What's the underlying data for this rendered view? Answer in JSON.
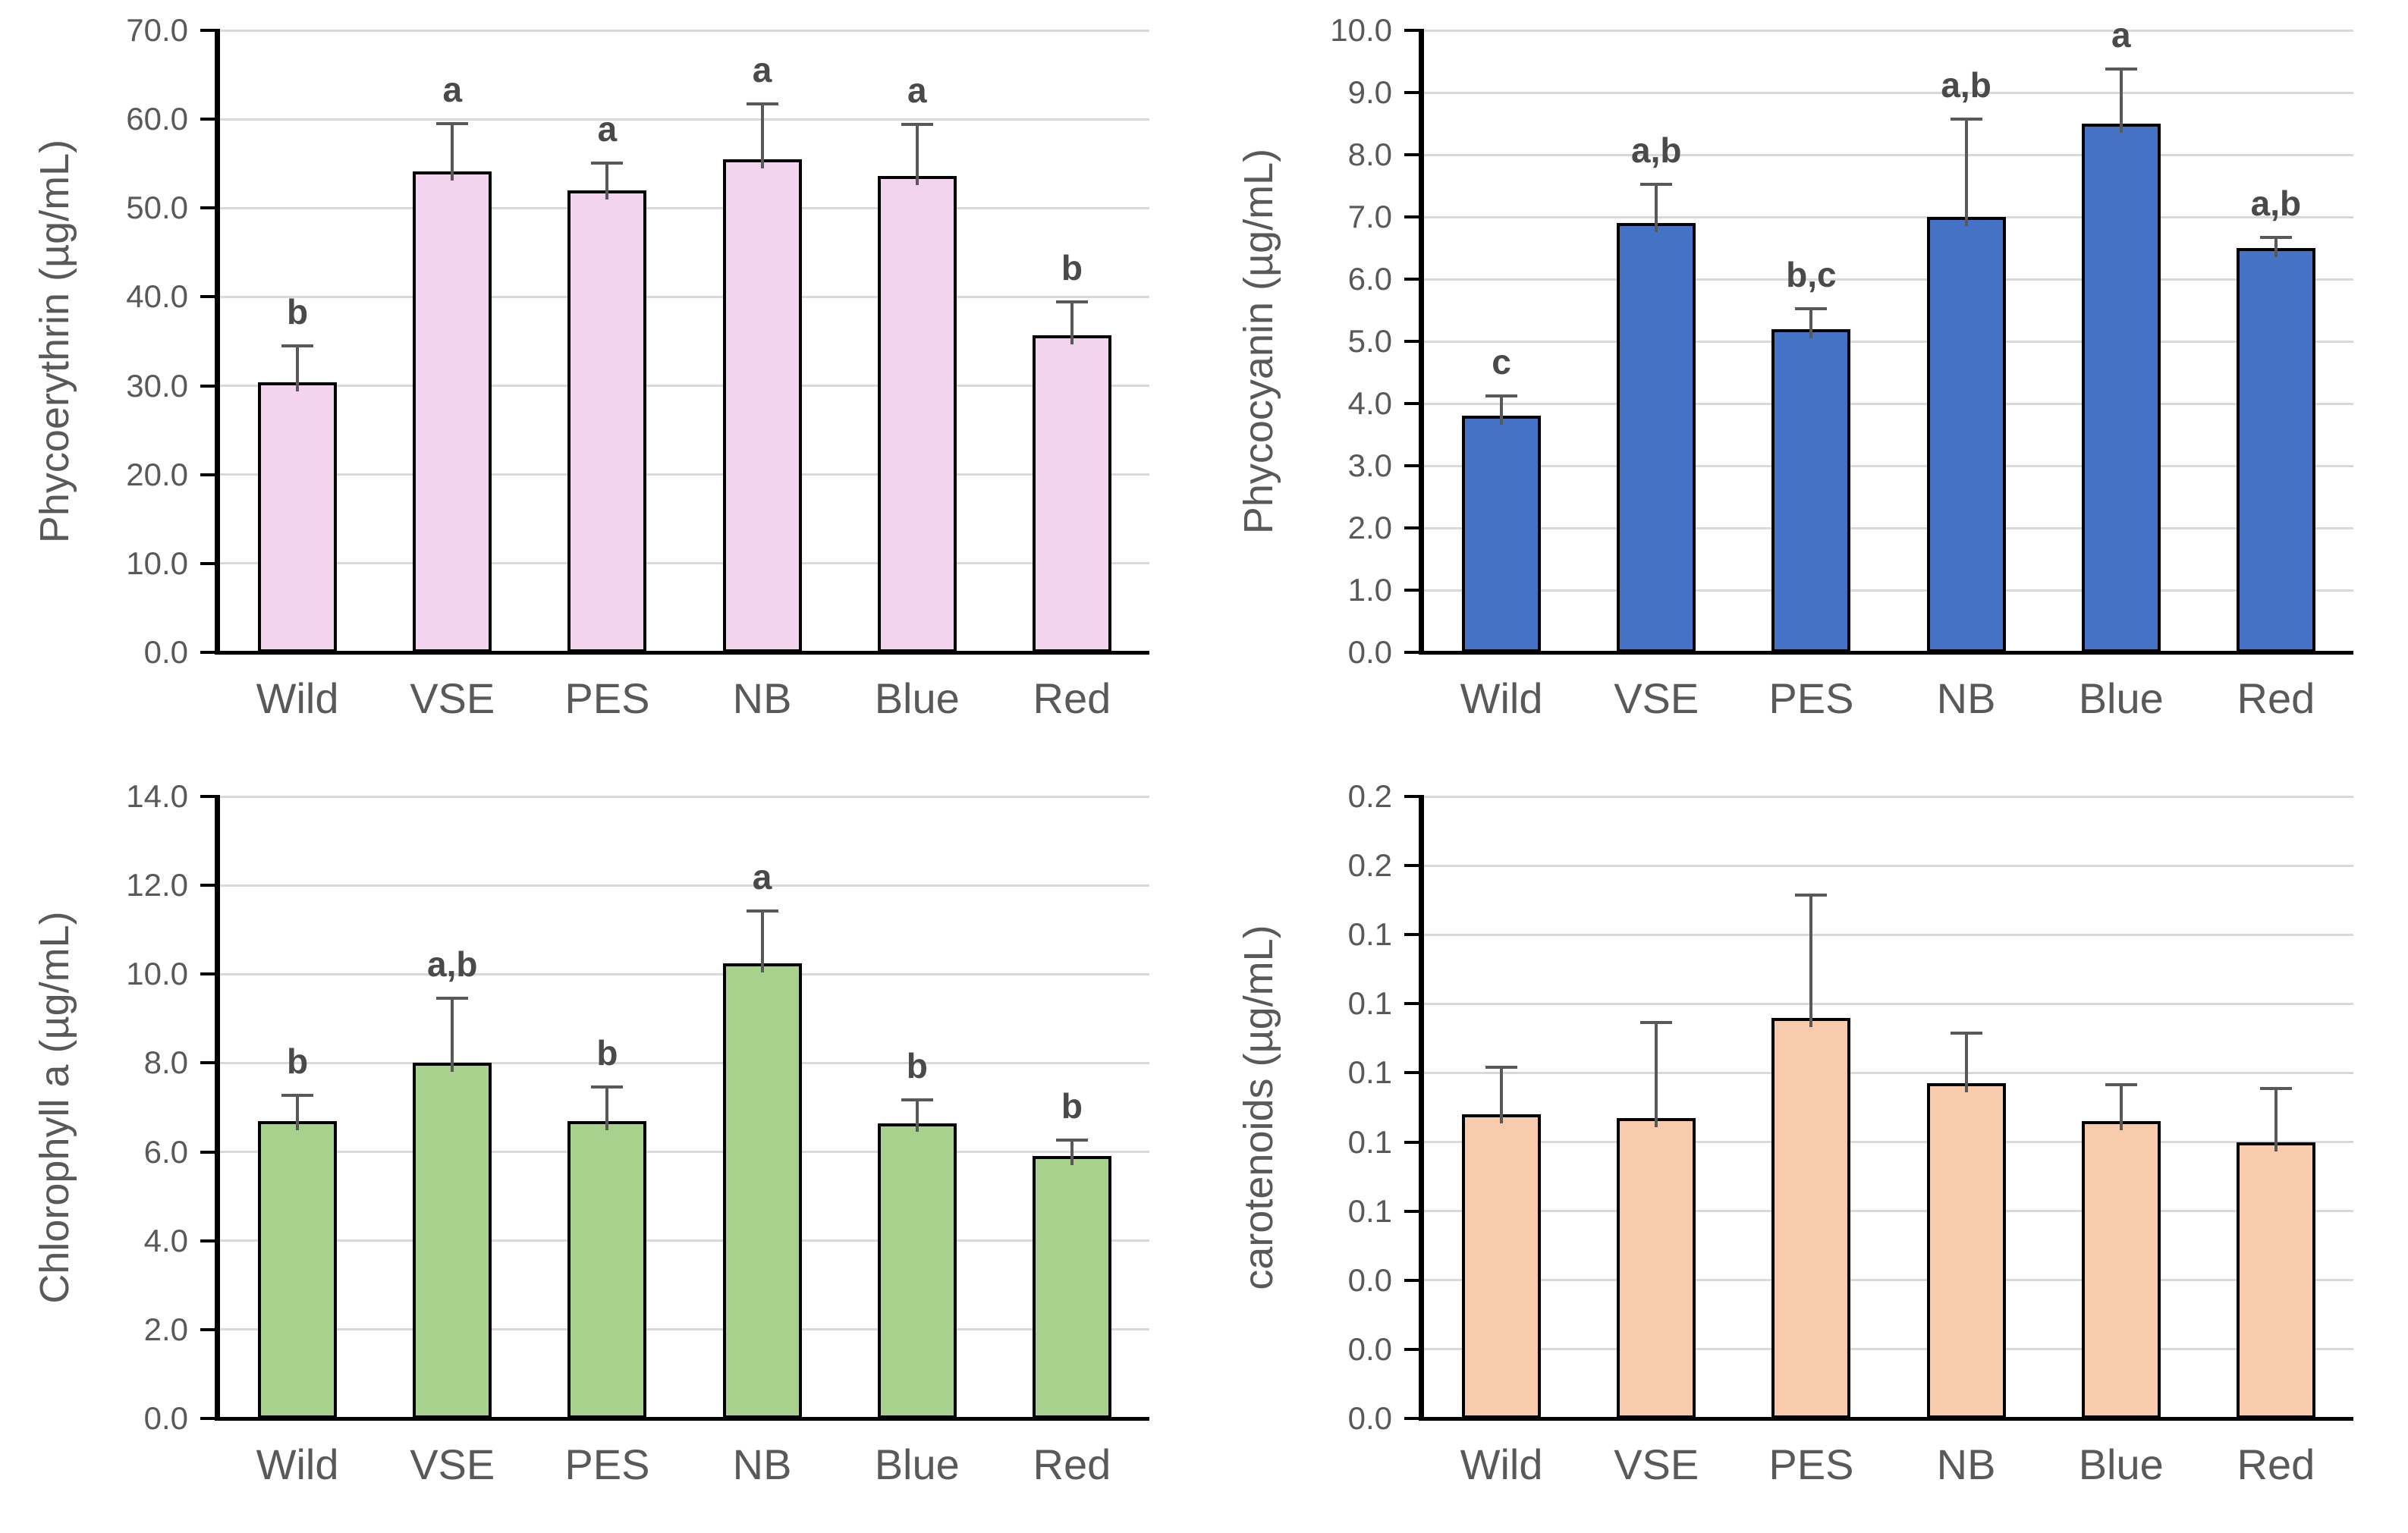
{
  "figure": {
    "background": "#FFFFFF",
    "grid_layout": "2x2",
    "categories_shared": [
      "Wild",
      "VSE",
      "PES",
      "NB",
      "Blue",
      "Red"
    ]
  },
  "styles": {
    "text_color": "#595959",
    "sig_letter_color": "#4a4a4a",
    "gridline_color": "#D9D9D9",
    "axis_color": "#000000",
    "error_bar_color": "#595959"
  },
  "chart_data": [
    {
      "id": "phycoerythrin",
      "type": "bar",
      "title": "Phycoerythrin",
      "ylabel": "Phycoerythrin (µg/mL)",
      "xlabel": "",
      "categories": [
        "Wild",
        "VSE",
        "PES",
        "NB",
        "Blue",
        "Red"
      ],
      "values": [
        30.4,
        54.1,
        52.0,
        55.5,
        53.6,
        35.7
      ],
      "error_plus": [
        4.3,
        5.6,
        3.2,
        6.4,
        6.0,
        3.9
      ],
      "sig_letters": [
        "b",
        "a",
        "a",
        "a",
        "a",
        "b"
      ],
      "ylim": [
        0,
        70
      ],
      "ytick_labels_bottom_to_top": [
        "0.0",
        "10.0",
        "20.0",
        "30.0",
        "40.0",
        "50.0",
        "60.0",
        "70.0"
      ],
      "grid": true,
      "legend": "none",
      "bar_fill": "#F3D4EF",
      "bar_border": "#000000"
    },
    {
      "id": "phycocyanin",
      "type": "bar",
      "title": "Phycocyanin",
      "ylabel": "Phycocyanin (µg/mL)",
      "xlabel": "",
      "categories": [
        "Wild",
        "VSE",
        "PES",
        "NB",
        "Blue",
        "Red"
      ],
      "values": [
        3.8,
        6.9,
        5.2,
        7.0,
        8.5,
        6.5
      ],
      "error_plus": [
        0.35,
        0.65,
        0.35,
        1.6,
        0.9,
        0.2
      ],
      "sig_letters": [
        "c",
        "a,b",
        "b,c",
        "a,b",
        "a",
        "a,b"
      ],
      "ylim": [
        0,
        10
      ],
      "ytick_labels_bottom_to_top": [
        "0.0",
        "1.0",
        "2.0",
        "3.0",
        "4.0",
        "5.0",
        "6.0",
        "7.0",
        "8.0",
        "9.0",
        "10.0"
      ],
      "grid": true,
      "legend": "none",
      "bar_fill": "#4472C4",
      "bar_border": "#000000"
    },
    {
      "id": "chlorophyll-a",
      "type": "bar",
      "title": "Chlorophyll a",
      "ylabel": "Chlorophyll a (µg/mL)",
      "xlabel": "",
      "categories": [
        "Wild",
        "VSE",
        "PES",
        "NB",
        "Blue",
        "Red"
      ],
      "values": [
        6.7,
        8.0,
        6.7,
        10.25,
        6.65,
        5.9
      ],
      "error_plus": [
        0.6,
        1.5,
        0.8,
        1.2,
        0.55,
        0.4
      ],
      "sig_letters": [
        "b",
        "a,b",
        "b",
        "a",
        "b",
        "b"
      ],
      "ylim": [
        0,
        14
      ],
      "ytick_labels_bottom_to_top": [
        "0.0",
        "2.0",
        "4.0",
        "6.0",
        "8.0",
        "10.0",
        "12.0",
        "14.0"
      ],
      "grid": true,
      "legend": "none",
      "bar_fill": "#A9D18E",
      "bar_border": "#000000"
    },
    {
      "id": "carotenoids",
      "type": "bar",
      "title": "carotenoids",
      "ylabel": "carotenoids (µg/mL)",
      "xlabel": "",
      "categories": [
        "Wild",
        "VSE",
        "PES",
        "NB",
        "Blue",
        "Red"
      ],
      "values": [
        0.088,
        0.087,
        0.116,
        0.097,
        0.086,
        0.08
      ],
      "error_plus": [
        0.014,
        0.028,
        0.036,
        0.015,
        0.011,
        0.016
      ],
      "sig_letters": [
        "",
        "",
        "",
        "",
        "",
        ""
      ],
      "ylim": [
        0,
        0.18
      ],
      "ytick_labels_bottom_to_top": [
        "0.0",
        "0.0",
        "0.0",
        "0.1",
        "0.1",
        "0.1",
        "0.1",
        "0.1",
        "0.2",
        "0.2"
      ],
      "grid": true,
      "legend": "none",
      "bar_fill": "#F8CBAD",
      "bar_border": "#000000"
    }
  ]
}
